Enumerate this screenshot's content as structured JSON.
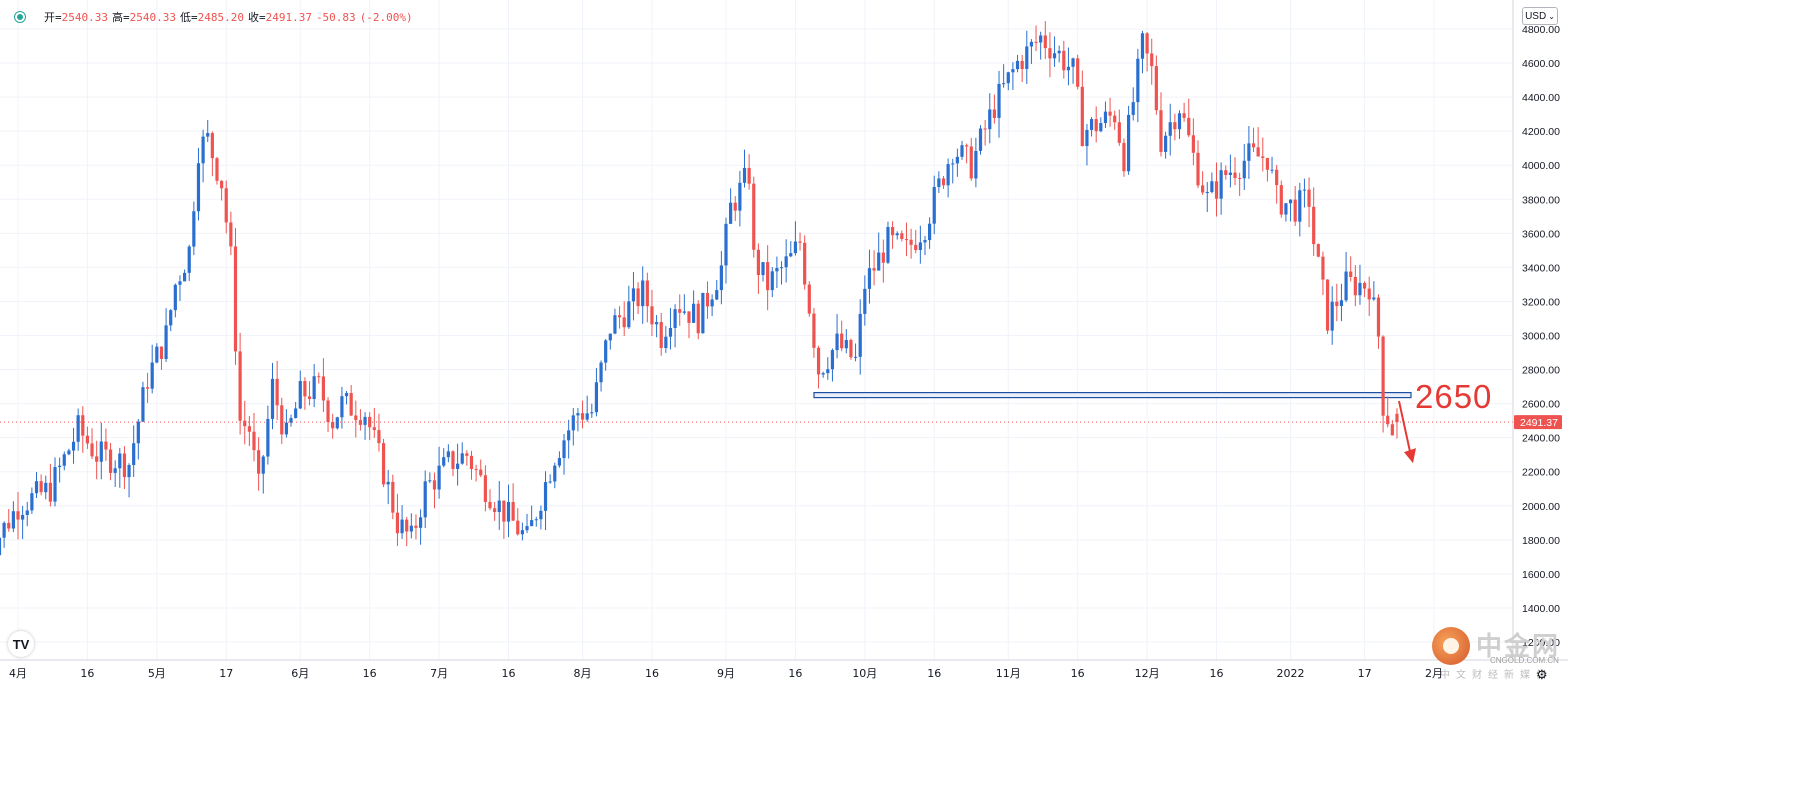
{
  "ohlc": {
    "open_label": "开",
    "open": "2540.33",
    "high_label": "高",
    "high": "2540.33",
    "low_label": "低",
    "low": "2485.20",
    "close_label": "收",
    "close": "2491.37",
    "change": "-50.83",
    "change_pct": "(-2.00%)"
  },
  "toolbar": {
    "currency": "USD",
    "currency_icon": "chevron-down-icon",
    "settings_icon": "gear-icon"
  },
  "logo": {
    "text": "TV",
    "icon": "tradingview-logo-icon"
  },
  "annotation": {
    "level_label": "2650"
  },
  "price_badge": "2491.37",
  "watermark": {
    "title": "中金网",
    "url": "CNGOLD.COM.CN",
    "subtitle": "中文财经新媒体"
  },
  "colors": {
    "up": "#2a6fd0",
    "down": "#ef5350",
    "accent": "#1e4fa0",
    "annotation": "#e53935",
    "grid": "#f0f3fa"
  },
  "chart_data": {
    "type": "candlestick",
    "currency": "USD",
    "ylim": [
      1200,
      4850
    ],
    "y_ticks": [
      "4800.00",
      "4600.00",
      "4400.00",
      "4200.00",
      "4000.00",
      "3800.00",
      "3600.00",
      "3400.00",
      "3200.00",
      "3000.00",
      "2800.00",
      "2600.00",
      "2400.00",
      "2200.00",
      "2000.00",
      "1800.00",
      "1600.00",
      "1400.00",
      "1200.00"
    ],
    "x_ticks": [
      "4月",
      "16",
      "5月",
      "17",
      "6月",
      "16",
      "7月",
      "16",
      "8月",
      "16",
      "9月",
      "16",
      "10月",
      "16",
      "11月",
      "16",
      "12月",
      "16",
      "2022",
      "17",
      "2月"
    ],
    "last_price": 2491.37,
    "horizontal_level": {
      "value": 2650,
      "label": "2650"
    },
    "trend_waypoints": [
      {
        "date": "2021-03-25",
        "price": 1700
      },
      {
        "date": "2021-04-01",
        "price": 2000
      },
      {
        "date": "2021-04-08",
        "price": 2100
      },
      {
        "date": "2021-04-14",
        "price": 2450
      },
      {
        "date": "2021-04-18",
        "price": 2300
      },
      {
        "date": "2021-04-25",
        "price": 2250
      },
      {
        "date": "2021-04-29",
        "price": 2750
      },
      {
        "date": "2021-05-03",
        "price": 3000
      },
      {
        "date": "2021-05-05",
        "price": 3300
      },
      {
        "date": "2021-05-08",
        "price": 3500
      },
      {
        "date": "2021-05-10",
        "price": 4100
      },
      {
        "date": "2021-05-12",
        "price": 4150
      },
      {
        "date": "2021-05-15",
        "price": 3900
      },
      {
        "date": "2021-05-17",
        "price": 3450
      },
      {
        "date": "2021-05-19",
        "price": 2500
      },
      {
        "date": "2021-05-21",
        "price": 2450
      },
      {
        "date": "2021-05-23",
        "price": 2100
      },
      {
        "date": "2021-05-26",
        "price": 2700
      },
      {
        "date": "2021-05-29",
        "price": 2400
      },
      {
        "date": "2021-06-01",
        "price": 2650
      },
      {
        "date": "2021-06-05",
        "price": 2700
      },
      {
        "date": "2021-06-08",
        "price": 2500
      },
      {
        "date": "2021-06-10",
        "price": 2600
      },
      {
        "date": "2021-06-15",
        "price": 2550
      },
      {
        "date": "2021-06-19",
        "price": 2200
      },
      {
        "date": "2021-06-22",
        "price": 1900
      },
      {
        "date": "2021-06-25",
        "price": 1800
      },
      {
        "date": "2021-06-28",
        "price": 2100
      },
      {
        "date": "2021-07-03",
        "price": 2250
      },
      {
        "date": "2021-07-07",
        "price": 2300
      },
      {
        "date": "2021-07-10",
        "price": 2150
      },
      {
        "date": "2021-07-14",
        "price": 2000
      },
      {
        "date": "2021-07-17",
        "price": 1900
      },
      {
        "date": "2021-07-20",
        "price": 1800
      },
      {
        "date": "2021-07-23",
        "price": 2050
      },
      {
        "date": "2021-07-26",
        "price": 2300
      },
      {
        "date": "2021-07-31",
        "price": 2550
      },
      {
        "date": "2021-08-03",
        "price": 2550
      },
      {
        "date": "2021-08-07",
        "price": 3050
      },
      {
        "date": "2021-08-14",
        "price": 3250
      },
      {
        "date": "2021-08-18",
        "price": 3000
      },
      {
        "date": "2021-08-21",
        "price": 3200
      },
      {
        "date": "2021-08-26",
        "price": 3100
      },
      {
        "date": "2021-08-31",
        "price": 3400
      },
      {
        "date": "2021-09-02",
        "price": 3750
      },
      {
        "date": "2021-09-06",
        "price": 3950
      },
      {
        "date": "2021-09-07",
        "price": 3450
      },
      {
        "date": "2021-09-10",
        "price": 3300
      },
      {
        "date": "2021-09-15",
        "price": 3450
      },
      {
        "date": "2021-09-17",
        "price": 3550
      },
      {
        "date": "2021-09-21",
        "price": 2800
      },
      {
        "date": "2021-09-25",
        "price": 2950
      },
      {
        "date": "2021-09-29",
        "price": 2850
      },
      {
        "date": "2021-10-01",
        "price": 3300
      },
      {
        "date": "2021-10-06",
        "price": 3550
      },
      {
        "date": "2021-10-10",
        "price": 3500
      },
      {
        "date": "2021-10-14",
        "price": 3650
      },
      {
        "date": "2021-10-20",
        "price": 4100
      },
      {
        "date": "2021-10-24",
        "price": 4000
      },
      {
        "date": "2021-10-29",
        "price": 4350
      },
      {
        "date": "2021-11-03",
        "price": 4600
      },
      {
        "date": "2021-11-08",
        "price": 4750
      },
      {
        "date": "2021-11-10",
        "price": 4700
      },
      {
        "date": "2021-11-12",
        "price": 4650
      },
      {
        "date": "2021-11-15",
        "price": 4550
      },
      {
        "date": "2021-11-17",
        "price": 4200
      },
      {
        "date": "2021-11-21",
        "price": 4250
      },
      {
        "date": "2021-11-24",
        "price": 4300
      },
      {
        "date": "2021-11-26",
        "price": 4050
      },
      {
        "date": "2021-11-30",
        "price": 4700
      },
      {
        "date": "2021-12-02",
        "price": 4550
      },
      {
        "date": "2021-12-04",
        "price": 4150
      },
      {
        "date": "2021-12-08",
        "price": 4350
      },
      {
        "date": "2021-12-11",
        "price": 4050
      },
      {
        "date": "2021-12-14",
        "price": 3800
      },
      {
        "date": "2021-12-18",
        "price": 3950
      },
      {
        "date": "2021-12-23",
        "price": 4050
      },
      {
        "date": "2021-12-27",
        "price": 4050
      },
      {
        "date": "2021-12-29",
        "price": 3800
      },
      {
        "date": "2022-01-02",
        "price": 3750
      },
      {
        "date": "2022-01-05",
        "price": 3800
      },
      {
        "date": "2022-01-06",
        "price": 3550
      },
      {
        "date": "2022-01-09",
        "price": 3100
      },
      {
        "date": "2022-01-13",
        "price": 3300
      },
      {
        "date": "2022-01-18",
        "price": 3300
      },
      {
        "date": "2022-01-20",
        "price": 3000
      },
      {
        "date": "2022-01-21",
        "price": 2600
      },
      {
        "date": "2022-01-23",
        "price": 2450
      },
      {
        "date": "2022-01-24",
        "price": 2491.37
      }
    ]
  }
}
